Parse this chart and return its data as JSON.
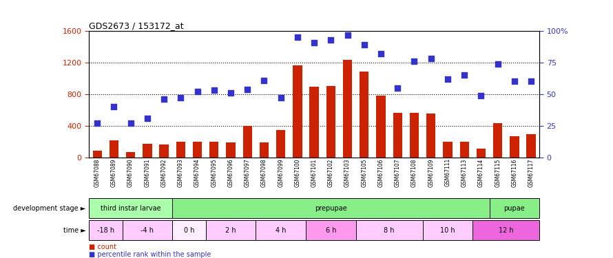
{
  "title": "GDS2673 / 153172_at",
  "samples": [
    "GSM67088",
    "GSM67089",
    "GSM67090",
    "GSM67091",
    "GSM67092",
    "GSM67093",
    "GSM67094",
    "GSM67095",
    "GSM67096",
    "GSM67097",
    "GSM67098",
    "GSM67099",
    "GSM67100",
    "GSM67101",
    "GSM67102",
    "GSM67103",
    "GSM67105",
    "GSM67106",
    "GSM67107",
    "GSM67108",
    "GSM67109",
    "GSM67111",
    "GSM67113",
    "GSM67114",
    "GSM67115",
    "GSM67116",
    "GSM67117"
  ],
  "counts": [
    85,
    215,
    70,
    170,
    160,
    195,
    200,
    200,
    190,
    395,
    190,
    345,
    1165,
    895,
    905,
    1230,
    1085,
    785,
    560,
    565,
    555,
    195,
    200,
    110,
    430,
    265,
    290
  ],
  "percentiles": [
    27,
    40,
    27,
    31,
    46,
    47,
    52,
    53,
    51,
    54,
    61,
    47,
    95,
    91,
    93,
    97,
    89,
    82,
    55,
    76,
    78,
    62,
    65,
    49,
    74,
    60,
    60
  ],
  "bar_color": "#cc2200",
  "dot_color": "#3333cc",
  "left_ylim": [
    0,
    1600
  ],
  "right_ylim": [
    0,
    100
  ],
  "left_yticks": [
    0,
    400,
    800,
    1200,
    1600
  ],
  "right_yticks": [
    0,
    25,
    50,
    75,
    100
  ],
  "right_yticklabels": [
    "0",
    "25",
    "50",
    "75",
    "100%"
  ],
  "bg_color": "#ffffff",
  "bar_width": 0.55,
  "dot_size": 40,
  "dev_stages": [
    {
      "label": "third instar larvae",
      "start": 0,
      "end": 5,
      "color": "#aaffaa"
    },
    {
      "label": "prepupae",
      "start": 5,
      "end": 24,
      "color": "#88ee88"
    },
    {
      "label": "pupae",
      "start": 24,
      "end": 27,
      "color": "#88ee88"
    }
  ],
  "time_groups": [
    {
      "label": "-18 h",
      "start": 0,
      "end": 2,
      "color": "#ffccff"
    },
    {
      "label": "-4 h",
      "start": 2,
      "end": 5,
      "color": "#ffccff"
    },
    {
      "label": "0 h",
      "start": 5,
      "end": 7,
      "color": "#ffeeff"
    },
    {
      "label": "2 h",
      "start": 7,
      "end": 10,
      "color": "#ffccff"
    },
    {
      "label": "4 h",
      "start": 10,
      "end": 13,
      "color": "#ffccff"
    },
    {
      "label": "6 h",
      "start": 13,
      "end": 16,
      "color": "#ff99ee"
    },
    {
      "label": "8 h",
      "start": 16,
      "end": 20,
      "color": "#ffccff"
    },
    {
      "label": "10 h",
      "start": 20,
      "end": 23,
      "color": "#ffccff"
    },
    {
      "label": "12 h",
      "start": 23,
      "end": 27,
      "color": "#ee66dd"
    }
  ]
}
